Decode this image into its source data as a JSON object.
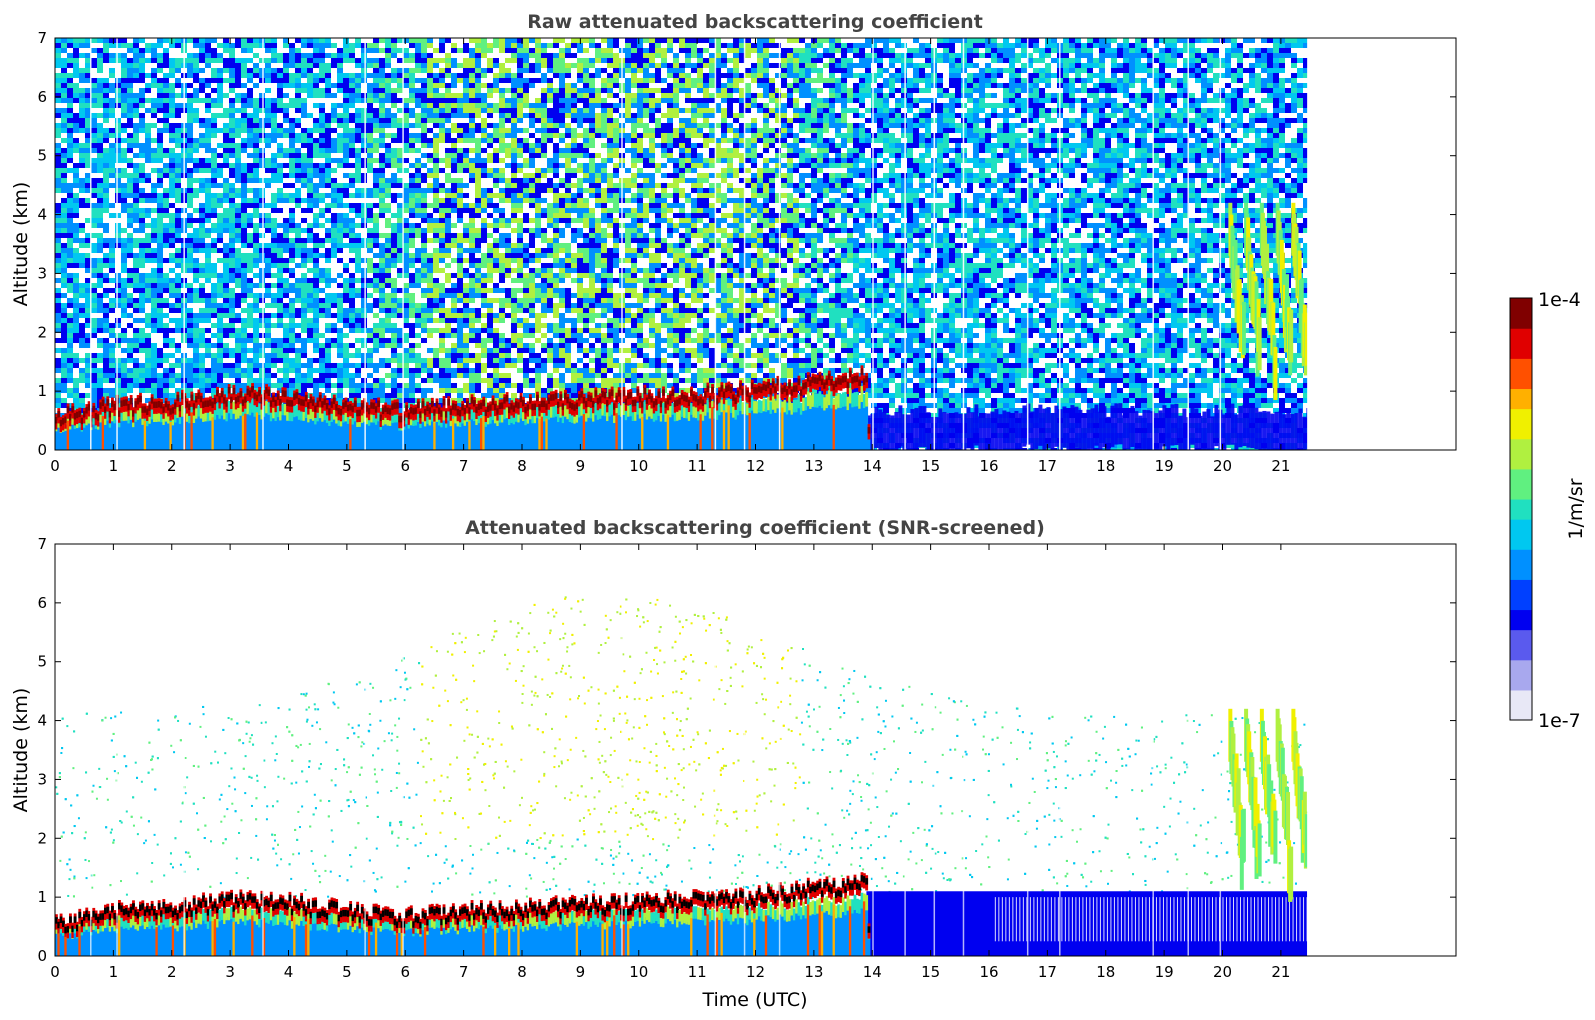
{
  "colors": {
    "colormap": [
      "#e8e8f6",
      "#a8a8ee",
      "#5a5aee",
      "#0000f0",
      "#0040ff",
      "#0090ff",
      "#00c8f0",
      "#20e0c0",
      "#60f080",
      "#b0f040",
      "#f0f000",
      "#ffb000",
      "#ff5000",
      "#e00000",
      "#800000"
    ],
    "black_core": "#000000"
  },
  "chart_data": [
    {
      "type": "heatmap",
      "title": "Raw attenuated backscattering coefficient",
      "xlabel": "",
      "ylabel": "Altitude (km)",
      "xlim": [
        0,
        24
      ],
      "ylim": [
        0,
        7
      ],
      "xticks": [
        "0",
        "1",
        "2",
        "3",
        "4",
        "5",
        "6",
        "7",
        "8",
        "9",
        "10",
        "11",
        "12",
        "13",
        "14",
        "15",
        "16",
        "17",
        "18",
        "19",
        "20",
        "21"
      ],
      "yticks": [
        "0",
        "1",
        "2",
        "3",
        "4",
        "5",
        "6",
        "7"
      ],
      "data_end_time": 21.45,
      "aerosol_layer_top_km": [
        [
          0,
          0.55
        ],
        [
          1,
          0.75
        ],
        [
          2,
          0.8
        ],
        [
          3,
          0.95
        ],
        [
          4,
          0.9
        ],
        [
          5,
          0.75
        ],
        [
          6,
          0.65
        ],
        [
          7,
          0.75
        ],
        [
          8,
          0.8
        ],
        [
          9,
          0.85
        ],
        [
          10,
          0.9
        ],
        [
          11,
          0.95
        ],
        [
          12,
          1.0
        ],
        [
          13,
          1.15
        ],
        [
          13.9,
          1.25
        ]
      ],
      "cloud_feature": {
        "time_range": [
          20.1,
          21.4
        ],
        "altitude_range_km": [
          1.3,
          4.2
        ]
      },
      "dropout_times": [
        0.6,
        1.05,
        2.2,
        3.55,
        5.3,
        5.95,
        9.7,
        11.3,
        11.8,
        12.4,
        14.0,
        14.55,
        15.05,
        15.55,
        16.65,
        17.2,
        18.8,
        19.4,
        19.95
      ]
    },
    {
      "type": "heatmap",
      "title": "Attenuated backscattering coefficient (SNR-screened)",
      "xlabel": "Time (UTC)",
      "ylabel": "Altitude (km)",
      "xlim": [
        0,
        24
      ],
      "ylim": [
        0,
        7
      ],
      "xticks": [
        "0",
        "1",
        "2",
        "3",
        "4",
        "5",
        "6",
        "7",
        "8",
        "9",
        "10",
        "11",
        "12",
        "13",
        "14",
        "15",
        "16",
        "17",
        "18",
        "19",
        "20",
        "21"
      ],
      "yticks": [
        "0",
        "1",
        "2",
        "3",
        "4",
        "5",
        "6",
        "7"
      ],
      "data_end_time": 21.45
    }
  ],
  "colorbar": {
    "label": "1/m/sr",
    "max_label": "1e-4",
    "min_label": "1e-7",
    "scale": "log",
    "range": [
      1e-07,
      0.0001
    ]
  }
}
